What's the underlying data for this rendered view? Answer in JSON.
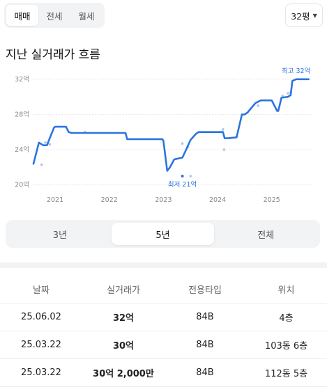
{
  "deal_tabs": {
    "items": [
      "매매",
      "전세",
      "월세"
    ],
    "active": "매매"
  },
  "size_select": {
    "value": "32평"
  },
  "title": "지난 실거래가 흐름",
  "chart_data": {
    "type": "line",
    "title": "",
    "xlabel": "",
    "ylabel": "",
    "yticks": [
      "20억",
      "24억",
      "28억",
      "32억"
    ],
    "ylim": [
      19.5,
      32.3
    ],
    "xlim": [
      2020.6,
      2025.75
    ],
    "xticks": [
      "2021",
      "2022",
      "2023",
      "2024",
      "2025"
    ],
    "colors": {
      "line": "#2b74e0",
      "points": "#a8c8f2"
    },
    "series": [
      {
        "x": [
          2020.6,
          2020.7,
          2020.78,
          2020.85,
          2020.9,
          2020.98,
          2021.0,
          2021.1,
          2021.2,
          2021.25,
          2021.3,
          2021.5,
          2022.0,
          2022.3,
          2022.33,
          2022.4,
          2022.8,
          2022.98,
          2023.0,
          2023.07,
          2023.12,
          2023.2,
          2023.35,
          2023.42,
          2023.5,
          2023.6,
          2023.65,
          2023.7,
          2024.0,
          2024.1,
          2024.13,
          2024.2,
          2024.35,
          2024.45,
          2024.5,
          2024.55,
          2024.7,
          2024.8,
          2024.83,
          2024.9,
          2025.0,
          2025.1,
          2025.12,
          2025.18,
          2025.3,
          2025.35,
          2025.38,
          2025.45,
          2025.68
        ],
        "y": [
          22.4,
          24.8,
          24.5,
          24.5,
          25.3,
          26.5,
          26.6,
          26.6,
          26.6,
          26.0,
          25.9,
          25.9,
          25.9,
          25.9,
          25.2,
          25.2,
          25.2,
          25.2,
          25.0,
          21.6,
          22.0,
          22.9,
          23.1,
          24.0,
          25.1,
          25.8,
          26.0,
          26.0,
          26.0,
          26.0,
          25.3,
          25.3,
          25.4,
          28.0,
          28.0,
          28.2,
          29.3,
          29.6,
          29.6,
          29.6,
          29.6,
          28.4,
          28.4,
          29.9,
          30.0,
          30.2,
          31.8,
          32.0,
          32.0
        ]
      }
    ],
    "points": [
      {
        "x": 2020.75,
        "y": 22.3
      },
      {
        "x": 2020.82,
        "y": 24.8
      },
      {
        "x": 2020.9,
        "y": 24.6
      },
      {
        "x": 2021.55,
        "y": 26.0
      },
      {
        "x": 2023.35,
        "y": 24.7
      },
      {
        "x": 2023.45,
        "y": 24.3
      },
      {
        "x": 2023.5,
        "y": 21.0
      },
      {
        "x": 2024.1,
        "y": 26.3
      },
      {
        "x": 2024.12,
        "y": 24.0
      },
      {
        "x": 2024.75,
        "y": 29.0
      },
      {
        "x": 2025.2,
        "y": 30.1
      },
      {
        "x": 2025.3,
        "y": 30.4
      },
      {
        "x": 2025.35,
        "y": 30.5
      }
    ],
    "annotations": [
      {
        "label": "최고 32억",
        "x": 2025.45,
        "y": 32.0,
        "position": "above"
      },
      {
        "label": "최저 21억",
        "x": 2023.35,
        "y": 21.0,
        "position": "below"
      }
    ],
    "grid": true
  },
  "period_tabs": {
    "items": [
      "3년",
      "5년",
      "전체"
    ],
    "active": "5년"
  },
  "table": {
    "headers": [
      "날짜",
      "실거래가",
      "전용타입",
      "위치"
    ],
    "rows": [
      [
        "25.06.02",
        "32억",
        "84B",
        "4층"
      ],
      [
        "25.03.22",
        "30억",
        "84B",
        "103동 6층"
      ],
      [
        "25.03.22",
        "30억 2,000만",
        "84B",
        "112동 5층"
      ]
    ]
  }
}
